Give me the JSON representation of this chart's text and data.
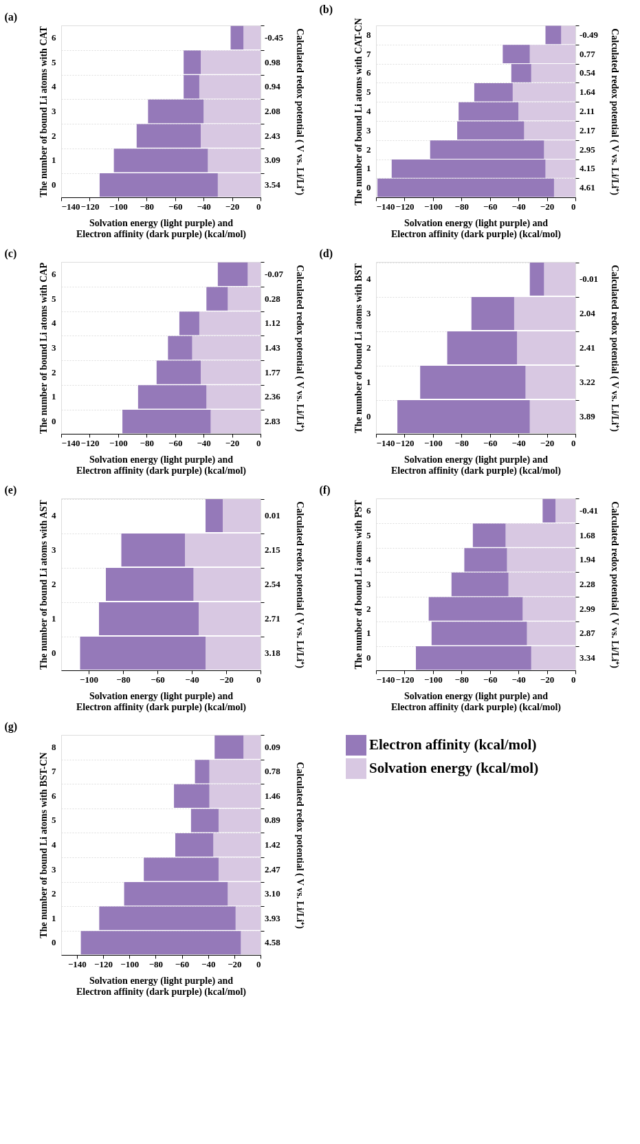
{
  "chart_data": [
    {
      "type": "bar",
      "title": "(a)",
      "orientation": "horizontal",
      "stacked": true,
      "grid": "y",
      "legend": false,
      "xlabel": "Solvation energy (light purple) and\nElectron affinity (dark purple) (kcal/mol)",
      "ylabel": "The number of bound Li atoms with CAT",
      "y2label": "Calculated redox potential ( V vs. Li/Li⁺)",
      "categories": [
        "6",
        "5",
        "4",
        "3",
        "2",
        "1",
        "0"
      ],
      "xlim": [
        -140,
        0
      ],
      "xticks": [
        -140,
        -120,
        -100,
        -80,
        -60,
        -40,
        -20,
        0
      ],
      "series": [
        {
          "color": "#d8c8e2",
          "values": [
            -12,
            -42,
            -43,
            -40,
            -42,
            -37,
            -30
          ]
        },
        {
          "color": "#9579b9",
          "values": [
            -9,
            -12,
            -11,
            -39,
            -45,
            -66,
            -83
          ]
        }
      ],
      "annotations": [
        "-0.45",
        "0.98",
        "0.94",
        "2.08",
        "2.43",
        "3.09",
        "3.54"
      ]
    },
    {
      "type": "bar",
      "title": "(b)",
      "orientation": "horizontal",
      "stacked": true,
      "grid": "y",
      "legend": false,
      "xlabel": "Solvation energy (light purple) and\nElectron affinity (dark purple) (kcal/mol)",
      "ylabel": "The number of bound Li atoms with CAT-CN",
      "y2label": "Calculated redox potential ( V vs. Li/Li⁺)",
      "categories": [
        "8",
        "7",
        "6",
        "5",
        "4",
        "3",
        "2",
        "1",
        "0"
      ],
      "xlim": [
        -140,
        0
      ],
      "xticks": [
        -140,
        -120,
        -100,
        -80,
        -60,
        -40,
        -20,
        0
      ],
      "series": [
        {
          "color": "#d8c8e2",
          "values": [
            -10,
            -32,
            -31,
            -44,
            -40,
            -36,
            -22,
            -21,
            -15
          ]
        },
        {
          "color": "#9579b9",
          "values": [
            -11,
            -19,
            -14,
            -27,
            -42,
            -47,
            -80,
            -108,
            -124
          ]
        }
      ],
      "annotations": [
        "-0.49",
        "0.77",
        "0.54",
        "1.64",
        "2.11",
        "2.17",
        "2.95",
        "4.15",
        "4.61"
      ]
    },
    {
      "type": "bar",
      "title": "(c)",
      "orientation": "horizontal",
      "stacked": true,
      "grid": "y",
      "legend": false,
      "xlabel": "Solvation energy (light purple) and\nElectron affinity (dark purple) (kcal/mol)",
      "ylabel": "The number of bound Li atoms with CAP",
      "y2label": "Calculated redox potential ( V vs. Li/Li⁺)",
      "categories": [
        "6",
        "5",
        "4",
        "3",
        "2",
        "1",
        "0"
      ],
      "xlim": [
        -140,
        0
      ],
      "xticks": [
        -140,
        -120,
        -100,
        -80,
        -60,
        -40,
        -20,
        0
      ],
      "series": [
        {
          "color": "#d8c8e2",
          "values": [
            -9,
            -23,
            -43,
            -48,
            -42,
            -38,
            -35
          ]
        },
        {
          "color": "#9579b9",
          "values": [
            -21,
            -15,
            -14,
            -17,
            -31,
            -48,
            -62
          ]
        }
      ],
      "annotations": [
        "-0.07",
        "0.28",
        "1.12",
        "1.43",
        "1.77",
        "2.36",
        "2.83"
      ]
    },
    {
      "type": "bar",
      "title": "(d)",
      "orientation": "horizontal",
      "stacked": true,
      "grid": "y",
      "legend": false,
      "xlabel": "Solvation energy (light purple) and\nElectron affinity (dark purple) (kcal/mol)",
      "ylabel": "The number of bound Li atoms with BST",
      "y2label": "Calculated redox potential ( V vs. Li/Li⁺)",
      "categories": [
        "4",
        "3",
        "2",
        "1",
        "0"
      ],
      "xlim": [
        -140,
        0
      ],
      "xticks": [
        -140,
        -120,
        -100,
        -80,
        -60,
        -40,
        -20,
        0
      ],
      "series": [
        {
          "color": "#d8c8e2",
          "values": [
            -22,
            -43,
            -41,
            -35,
            -32
          ]
        },
        {
          "color": "#9579b9",
          "values": [
            -10,
            -30,
            -49,
            -74,
            -93
          ]
        }
      ],
      "annotations": [
        "-0.01",
        "2.04",
        "2.41",
        "3.22",
        "3.89"
      ]
    },
    {
      "type": "bar",
      "title": "(e)",
      "orientation": "horizontal",
      "stacked": true,
      "grid": "y",
      "legend": false,
      "xlabel": "Solvation energy (light purple) and\nElectron affinity (dark purple) (kcal/mol)",
      "ylabel": "The number of bound Li atoms with AST",
      "y2label": "Calculated redox potential ( V vs. Li/Li⁺)",
      "categories": [
        "4",
        "3",
        "2",
        "1",
        "0"
      ],
      "xlim": [
        -116,
        0
      ],
      "xticks": [
        -100,
        -80,
        -60,
        -40,
        -20,
        0
      ],
      "series": [
        {
          "color": "#d8c8e2",
          "values": [
            -22,
            -44,
            -39,
            -36,
            -32
          ]
        },
        {
          "color": "#9579b9",
          "values": [
            -10,
            -37,
            -51,
            -58,
            -73
          ]
        }
      ],
      "annotations": [
        "0.01",
        "2.15",
        "2.54",
        "2.71",
        "3.18"
      ]
    },
    {
      "type": "bar",
      "title": "(f)",
      "orientation": "horizontal",
      "stacked": true,
      "grid": "y",
      "legend": false,
      "xlabel": "Solvation energy (light purple) and\nElectron affinity (dark purple) (kcal/mol)",
      "ylabel": "The number of bound Li atoms with PST",
      "y2label": "Calculated redox potential ( V vs. Li/Li⁺)",
      "categories": [
        "6",
        "5",
        "4",
        "3",
        "2",
        "1",
        "0"
      ],
      "xlim": [
        -140,
        0
      ],
      "xticks": [
        -140,
        -120,
        -100,
        -80,
        -60,
        -40,
        -20,
        0
      ],
      "series": [
        {
          "color": "#d8c8e2",
          "values": [
            -14,
            -49,
            -48,
            -47,
            -37,
            -34,
            -31
          ]
        },
        {
          "color": "#9579b9",
          "values": [
            -9,
            -23,
            -30,
            -40,
            -66,
            -67,
            -81
          ]
        }
      ],
      "annotations": [
        "-0.41",
        "1.68",
        "1.94",
        "2.28",
        "2.99",
        "2.87",
        "3.34"
      ]
    },
    {
      "type": "bar",
      "title": "(g)",
      "orientation": "horizontal",
      "stacked": true,
      "grid": "y",
      "legend": "right",
      "xlabel": "Solvation energy (light purple) and\nElectron affinity (dark purple) (kcal/mol)",
      "ylabel": "The number of bound Li atoms with BST-CN",
      "y2label": "Calculated redox potential ( V vs. Li/Li⁺)",
      "categories": [
        "8",
        "7",
        "6",
        "5",
        "4",
        "3",
        "2",
        "1",
        "0"
      ],
      "xlim": [
        -152,
        0
      ],
      "xticks": [
        -140,
        -120,
        -100,
        -80,
        -60,
        -40,
        -20,
        0
      ],
      "series": [
        {
          "name": "Solvation energy (kcal/mol)",
          "color": "#d8c8e2",
          "values": [
            -13,
            -39,
            -39,
            -32,
            -36,
            -32,
            -25,
            -19,
            -15
          ]
        },
        {
          "name": "Electron affinity (kcal/mol)",
          "color": "#9579b9",
          "values": [
            -22,
            -11,
            -27,
            -21,
            -29,
            -57,
            -79,
            -104,
            -122
          ]
        }
      ],
      "annotations": [
        "0.09",
        "0.78",
        "1.46",
        "0.89",
        "1.42",
        "2.47",
        "3.10",
        "3.93",
        "4.58"
      ]
    }
  ]
}
